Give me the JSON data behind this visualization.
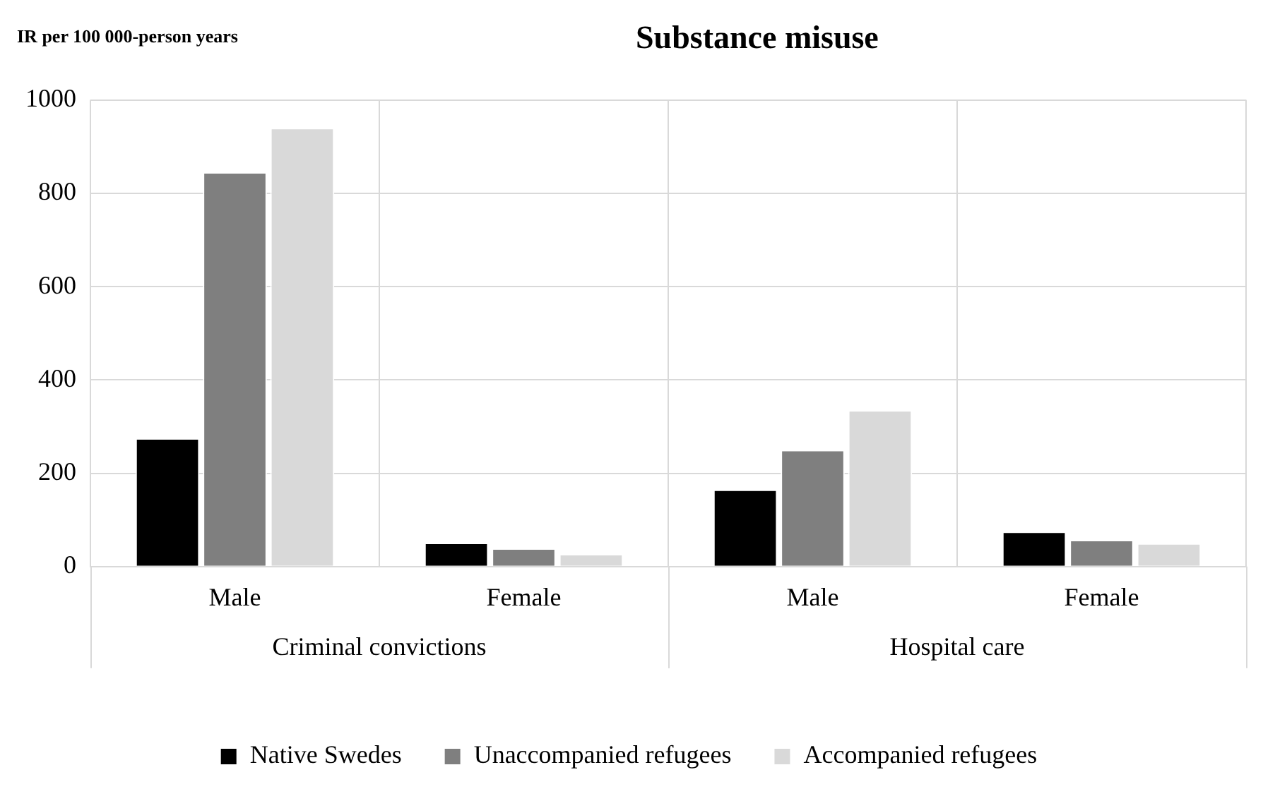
{
  "chart_data": {
    "type": "bar",
    "title": "Substance misuse",
    "ylabel": "IR per 100 000-person years",
    "categories": [
      "Male",
      "Female",
      "Male",
      "Female"
    ],
    "annotations": [
      "Criminal convictions",
      "Hospital care"
    ],
    "series": [
      {
        "name": "Native Swedes",
        "color": "#000000",
        "values": [
          275,
          51,
          165,
          75
        ]
      },
      {
        "name": "Unaccompanied refugees",
        "color": "#7f7f7f",
        "values": [
          845,
          39,
          250,
          57
        ]
      },
      {
        "name": "Accompanied refugees",
        "color": "#d9d9d9",
        "values": [
          940,
          27,
          335,
          50
        ]
      }
    ],
    "ylim": [
      0,
      1000
    ],
    "yticks": [
      0,
      200,
      400,
      600,
      800,
      1000
    ],
    "grid": true,
    "legend": "bottom"
  }
}
